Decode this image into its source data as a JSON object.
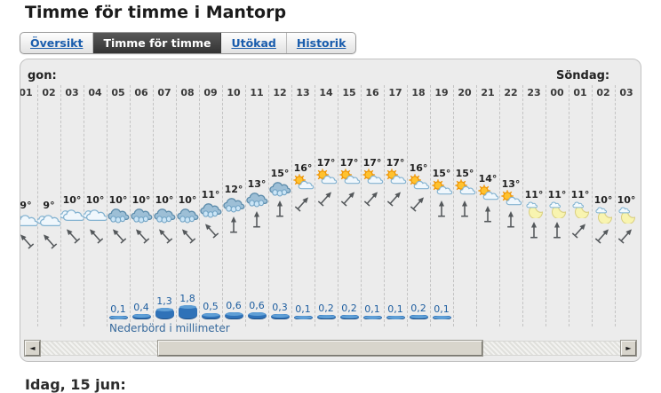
{
  "page": {
    "title": "Timme för timme i Mantorp",
    "bottom_heading": "Idag, 15 jun:"
  },
  "tabs": [
    {
      "label": "Översikt",
      "active": false
    },
    {
      "label": "Timme för timme",
      "active": true
    },
    {
      "label": "Utökad",
      "active": false
    },
    {
      "label": "Historik",
      "active": false
    }
  ],
  "scrollbar": {
    "left_arrow": "◄",
    "right_arrow": "►"
  },
  "colors": {
    "link_blue": "#1a5dad",
    "active_tab_bg": "#3c3c3c",
    "panel_bg": "#ececec",
    "precip_bar_blue": "#2f72b8",
    "precip_text_blue": "#1d5d9f",
    "sun_orange": "#ffb72e",
    "moon_yellow": "#f8f4b0"
  },
  "chart_data": {
    "type": "table",
    "title": "Timme för timme i Mantorp",
    "day_label_left": "gon:",
    "day_label_right": "Söndag:",
    "precip_axis_label": "Nederbörd i millimeter",
    "temp_unit": "°C",
    "precip_unit": "mm",
    "columns": [
      {
        "hour": "01",
        "temp": 9,
        "temp_label": "9°",
        "icon": "cloud",
        "wind": "NW",
        "precip_label": null,
        "precip": null
      },
      {
        "hour": "02",
        "temp": 9,
        "temp_label": "9°",
        "icon": "cloud",
        "wind": "NW",
        "precip_label": null,
        "precip": null
      },
      {
        "hour": "03",
        "temp": 10,
        "temp_label": "10°",
        "icon": "cloud",
        "wind": "NW",
        "precip_label": null,
        "precip": null
      },
      {
        "hour": "04",
        "temp": 10,
        "temp_label": "10°",
        "icon": "cloud",
        "wind": "NW",
        "precip_label": null,
        "precip": null
      },
      {
        "hour": "05",
        "temp": 10,
        "temp_label": "10°",
        "icon": "rain-cloud",
        "wind": "NW",
        "precip_label": "0,1",
        "precip": 0.1
      },
      {
        "hour": "06",
        "temp": 10,
        "temp_label": "10°",
        "icon": "rain-cloud",
        "wind": "NW",
        "precip_label": "0,4",
        "precip": 0.4
      },
      {
        "hour": "07",
        "temp": 10,
        "temp_label": "10°",
        "icon": "rain-cloud",
        "wind": "NW",
        "precip_label": "1,3",
        "precip": 1.3
      },
      {
        "hour": "08",
        "temp": 10,
        "temp_label": "10°",
        "icon": "rain-cloud",
        "wind": "NW",
        "precip_label": "1,8",
        "precip": 1.8
      },
      {
        "hour": "09",
        "temp": 11,
        "temp_label": "11°",
        "icon": "rain-cloud",
        "wind": "NW",
        "precip_label": "0,5",
        "precip": 0.5
      },
      {
        "hour": "10",
        "temp": 12,
        "temp_label": "12°",
        "icon": "rain-cloud",
        "wind": "N",
        "precip_label": "0,6",
        "precip": 0.6
      },
      {
        "hour": "11",
        "temp": 13,
        "temp_label": "13°",
        "icon": "rain-cloud",
        "wind": "N",
        "precip_label": "0,6",
        "precip": 0.6
      },
      {
        "hour": "12",
        "temp": 15,
        "temp_label": "15°",
        "icon": "rain-cloud",
        "wind": "N",
        "precip_label": "0,3",
        "precip": 0.3
      },
      {
        "hour": "13",
        "temp": 16,
        "temp_label": "16°",
        "icon": "sun-cloud",
        "wind": "NE",
        "precip_label": "0,1",
        "precip": 0.1
      },
      {
        "hour": "14",
        "temp": 17,
        "temp_label": "17°",
        "icon": "sun-cloud",
        "wind": "NE",
        "precip_label": "0,2",
        "precip": 0.2
      },
      {
        "hour": "15",
        "temp": 17,
        "temp_label": "17°",
        "icon": "sun-cloud",
        "wind": "NE",
        "precip_label": "0,2",
        "precip": 0.2
      },
      {
        "hour": "16",
        "temp": 17,
        "temp_label": "17°",
        "icon": "sun-cloud",
        "wind": "NE",
        "precip_label": "0,1",
        "precip": 0.1
      },
      {
        "hour": "17",
        "temp": 17,
        "temp_label": "17°",
        "icon": "sun-cloud",
        "wind": "NE",
        "precip_label": "0,1",
        "precip": 0.1
      },
      {
        "hour": "18",
        "temp": 16,
        "temp_label": "16°",
        "icon": "sun-cloud",
        "wind": "NE",
        "precip_label": "0,2",
        "precip": 0.2
      },
      {
        "hour": "19",
        "temp": 15,
        "temp_label": "15°",
        "icon": "sun-cloud",
        "wind": "N",
        "precip_label": "0,1",
        "precip": 0.1
      },
      {
        "hour": "20",
        "temp": 15,
        "temp_label": "15°",
        "icon": "sun-cloud",
        "wind": "N",
        "precip_label": null,
        "precip": null
      },
      {
        "hour": "21",
        "temp": 14,
        "temp_label": "14°",
        "icon": "sun-cloud",
        "wind": "N",
        "precip_label": null,
        "precip": null
      },
      {
        "hour": "22",
        "temp": 13,
        "temp_label": "13°",
        "icon": "sun-cloud",
        "wind": "N",
        "precip_label": null,
        "precip": null
      },
      {
        "hour": "23",
        "temp": 11,
        "temp_label": "11°",
        "icon": "moon-cloud",
        "wind": "N",
        "precip_label": null,
        "precip": null
      },
      {
        "hour": "00",
        "temp": 11,
        "temp_label": "11°",
        "icon": "moon-cloud",
        "wind": "N",
        "precip_label": null,
        "precip": null
      },
      {
        "hour": "01",
        "temp": 11,
        "temp_label": "11°",
        "icon": "moon-cloud",
        "wind": "NE",
        "precip_label": null,
        "precip": null
      },
      {
        "hour": "02",
        "temp": 10,
        "temp_label": "10°",
        "icon": "moon-cloud",
        "wind": "NE",
        "precip_label": null,
        "precip": null
      },
      {
        "hour": "03",
        "temp": 10,
        "temp_label": "10°",
        "icon": "moon-cloud",
        "wind": "NE",
        "precip_label": null,
        "precip": null
      }
    ]
  }
}
